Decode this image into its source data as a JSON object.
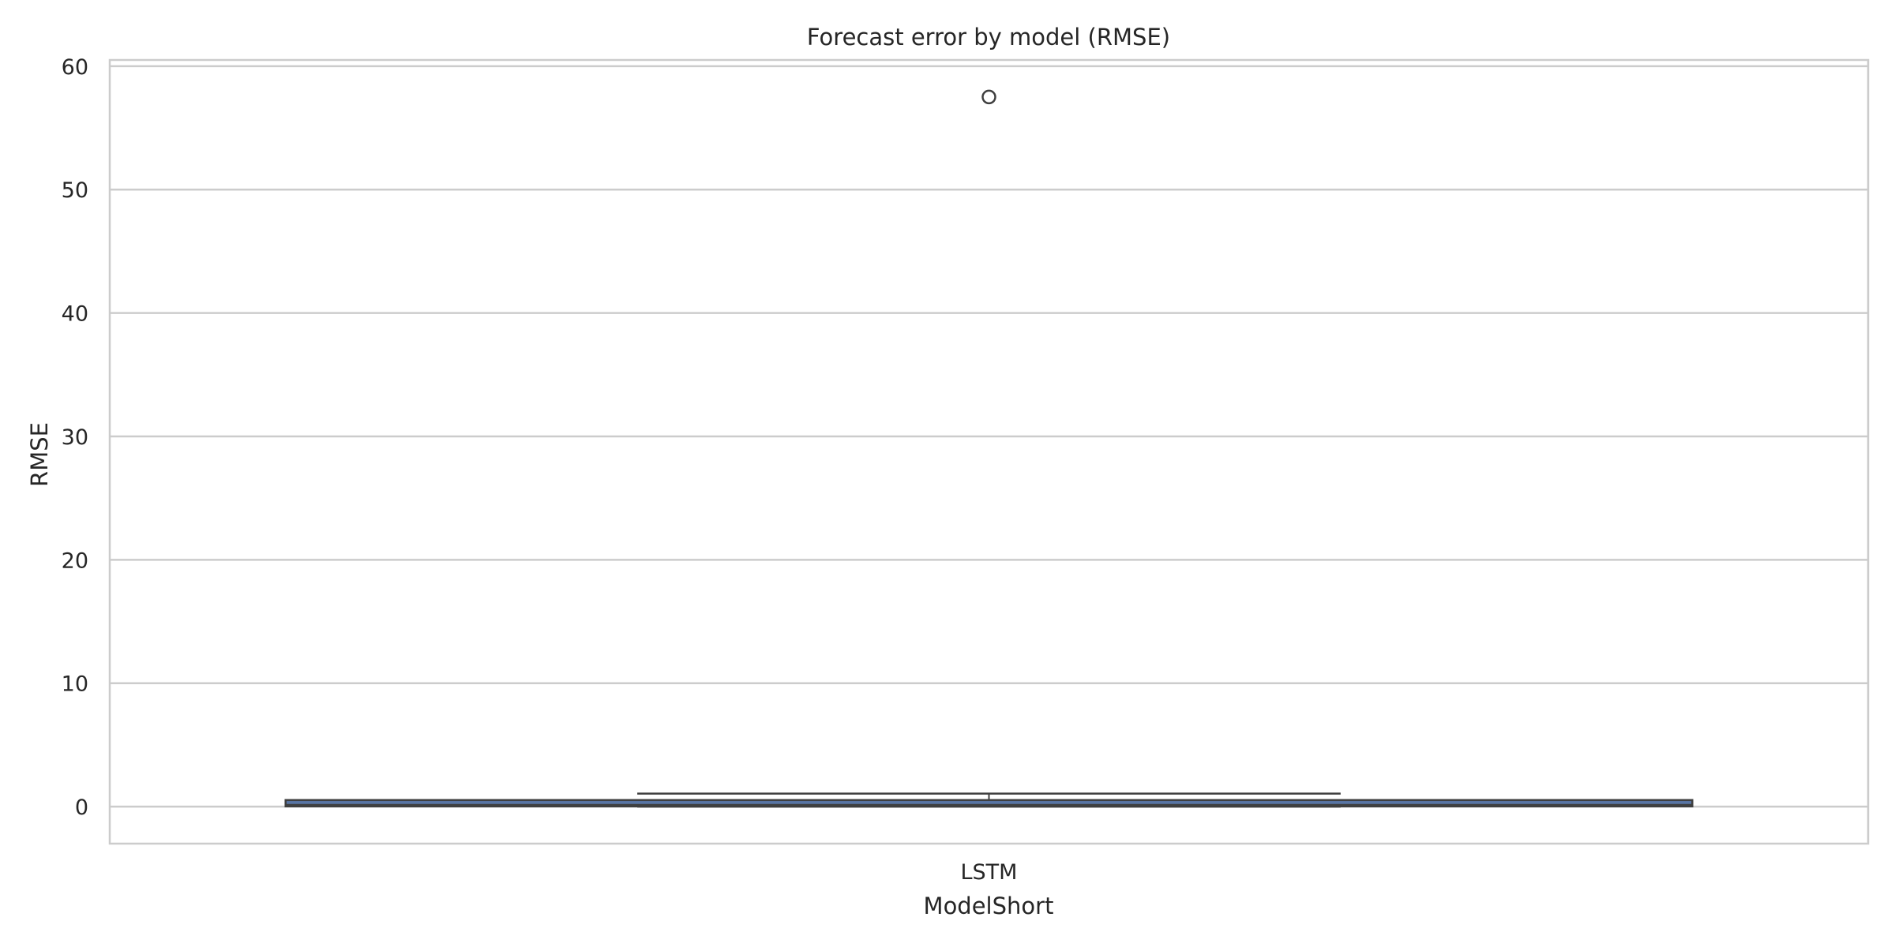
{
  "chart_data": {
    "type": "box",
    "title": "Forecast error by model (RMSE)",
    "xlabel": "ModelShort",
    "ylabel": "RMSE",
    "categories": [
      "LSTM"
    ],
    "ylim": [
      -3,
      60.5
    ],
    "yticks": [
      0,
      10,
      20,
      30,
      40,
      50,
      60
    ],
    "ytick_labels": [
      "0",
      "10",
      "20",
      "30",
      "40",
      "50",
      "60"
    ],
    "grid": true,
    "series": [
      {
        "category": "LSTM",
        "whisker_low": 0.0,
        "q1": 0.05,
        "median": 0.15,
        "q3": 0.5,
        "whisker_high": 1.05,
        "outliers": [
          57.5
        ]
      }
    ],
    "colors": {
      "box_fill": "#5875a4",
      "box_edge": "#3f3f3f",
      "grid": "#cccccc",
      "axes_edge": "#cccccc",
      "text": "#262626"
    }
  }
}
